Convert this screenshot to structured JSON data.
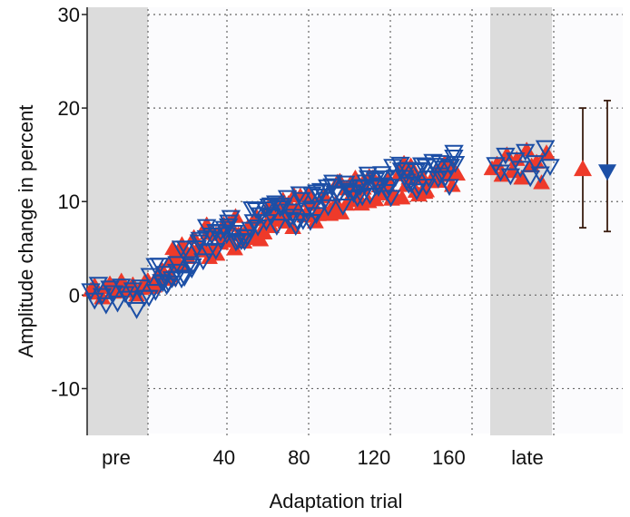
{
  "chart_data": {
    "type": "scatter",
    "title": "",
    "xlabel": "Adaptation trial",
    "ylabel": "Amplitude change in percent",
    "ylim": [
      -15,
      30
    ],
    "yticks": [
      -10,
      0,
      10,
      20,
      30
    ],
    "ytick_labels": [
      "-10",
      "0",
      "10",
      "20",
      "30"
    ],
    "xticks": [
      40,
      80,
      120,
      160
    ],
    "xtick_labels": [
      "40",
      "80",
      "120",
      "160"
    ],
    "x_category_labels": [
      "pre",
      "late"
    ],
    "grid": true,
    "shaded_regions": [
      "pre",
      "late"
    ],
    "colors": {
      "red": "#ee3a2a",
      "blue": "#1c4fa6",
      "shade": "#dcdcdc",
      "grid": "#666666"
    },
    "series": [
      {
        "marker": "filled-triangle-up",
        "color": "#ee3a2a",
        "pre": [
          0.5,
          1.0,
          0.2,
          -0.3,
          0.8,
          1.2,
          0.3,
          0.6,
          1.5,
          0.9,
          0.4,
          1.1,
          0.0,
          0.7,
          1.3
        ],
        "adaptation_trend": [
          [
            0,
            1.5
          ],
          [
            20,
            4.5
          ],
          [
            40,
            6.5
          ],
          [
            80,
            9.0
          ],
          [
            120,
            11.5
          ],
          [
            160,
            13.0
          ]
        ],
        "late": [
          13.5,
          14.0,
          12.8,
          15.0,
          13.2,
          14.5,
          12.5,
          15.5,
          13.8,
          14.2,
          12.0,
          15.2
        ],
        "summary": {
          "mean": 13.5,
          "ci_low": 7.2,
          "ci_high": 20.0
        }
      },
      {
        "marker": "open-triangle-down",
        "color": "#1c4fa6",
        "pre": [
          0.5,
          -0.5,
          1.2,
          0.0,
          -1.0,
          0.8,
          0.3,
          -0.8,
          1.0,
          0.2,
          -0.3,
          0.6,
          -1.5,
          0.9,
          -0.2
        ],
        "adaptation_trend": [
          [
            0,
            1.0
          ],
          [
            20,
            4.0
          ],
          [
            40,
            6.5
          ],
          [
            80,
            9.5
          ],
          [
            120,
            12.0
          ],
          [
            160,
            13.5
          ]
        ],
        "late": [
          14.0,
          13.2,
          15.0,
          12.8,
          14.5,
          13.6,
          15.4,
          12.6,
          14.2,
          13.0,
          15.8,
          13.8
        ],
        "summary": {
          "mean": 13.2,
          "ci_low": 6.8,
          "ci_high": 20.8
        }
      }
    ]
  }
}
